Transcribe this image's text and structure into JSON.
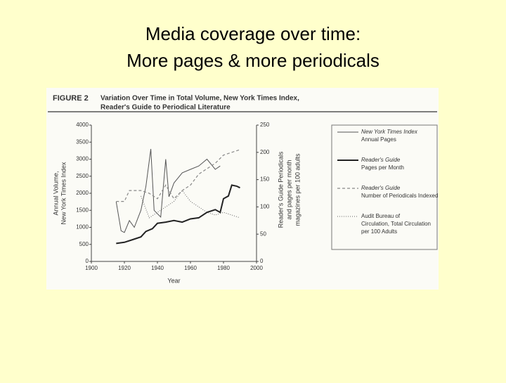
{
  "slide_title": [
    "Media coverage over time:",
    "More pages & more periodicals"
  ],
  "chart_data": {
    "type": "line",
    "figure_label": "FIGURE 2",
    "title": [
      "Variation Over Time in Total Volume, New York Times Index,",
      "Reader's Guide to Periodical Literature"
    ],
    "x_label": "Year",
    "y_label": [
      "Annual Volume,",
      "New York Times Index"
    ],
    "y2_label": [
      "Reader's Guide Periodicals",
      "and pages per month",
      "magazines per 100 adults"
    ],
    "xlim": [
      1900,
      2000
    ],
    "xticks": [
      1900,
      1920,
      1940,
      1960,
      1980,
      2000
    ],
    "ylim": [
      0,
      4000
    ],
    "yticks": [
      0,
      500,
      1000,
      1500,
      2000,
      2500,
      3000,
      3500,
      4000
    ],
    "y2lim": [
      0,
      250
    ],
    "y2ticks": [
      0,
      50,
      100,
      150,
      200,
      250
    ],
    "grid": false,
    "legend": "right",
    "series": [
      {
        "name": "New York Times Index",
        "detail": "Annual Pages",
        "color": "#555555",
        "width": 1,
        "dash": "none",
        "axis": "y",
        "x": [
          1915,
          1918,
          1920,
          1923,
          1926,
          1930,
          1933,
          1936,
          1938,
          1942,
          1945,
          1947,
          1950,
          1955,
          1960,
          1965,
          1970,
          1975,
          1978
        ],
        "values": [
          1750,
          900,
          850,
          1200,
          1000,
          1500,
          2200,
          3300,
          1500,
          1300,
          3000,
          1900,
          2300,
          2600,
          2700,
          2800,
          3000,
          2700,
          2800
        ]
      },
      {
        "name": "Reader's Guide",
        "detail": "Pages per Month",
        "color": "#222222",
        "width": 2,
        "dash": "none",
        "axis": "y2",
        "x": [
          1915,
          1920,
          1925,
          1930,
          1933,
          1937,
          1940,
          1945,
          1950,
          1955,
          1960,
          1965,
          1970,
          1975,
          1978,
          1980,
          1983,
          1985,
          1988,
          1990
        ],
        "values": [
          33,
          35,
          40,
          45,
          55,
          60,
          70,
          72,
          75,
          72,
          78,
          80,
          90,
          95,
          90,
          115,
          120,
          140,
          138,
          135
        ]
      },
      {
        "name": "Reader's Guide",
        "detail": "Number of Periodicals Indexed",
        "color": "#888888",
        "width": 1.2,
        "dash": "4 3",
        "axis": "y2",
        "x": [
          1915,
          1920,
          1923,
          1930,
          1935,
          1940,
          1945,
          1950,
          1955,
          1960,
          1965,
          1970,
          1975,
          1980,
          1985,
          1990
        ],
        "values": [
          110,
          110,
          130,
          130,
          125,
          115,
          140,
          115,
          130,
          140,
          160,
          170,
          180,
          195,
          200,
          205
        ]
      },
      {
        "name": "Audit Bureau of Circulation, Total Circulation per 100 Adults",
        "detail": null,
        "color": "#666666",
        "width": 1,
        "dash": "1 2",
        "axis": "y2",
        "x": [
          1930,
          1935,
          1940,
          1945,
          1950,
          1955,
          1960,
          1965,
          1970,
          1975,
          1980,
          1985,
          1990
        ],
        "values": [
          120,
          80,
          90,
          100,
          110,
          130,
          110,
          100,
          90,
          85,
          90,
          85,
          80
        ]
      }
    ]
  }
}
